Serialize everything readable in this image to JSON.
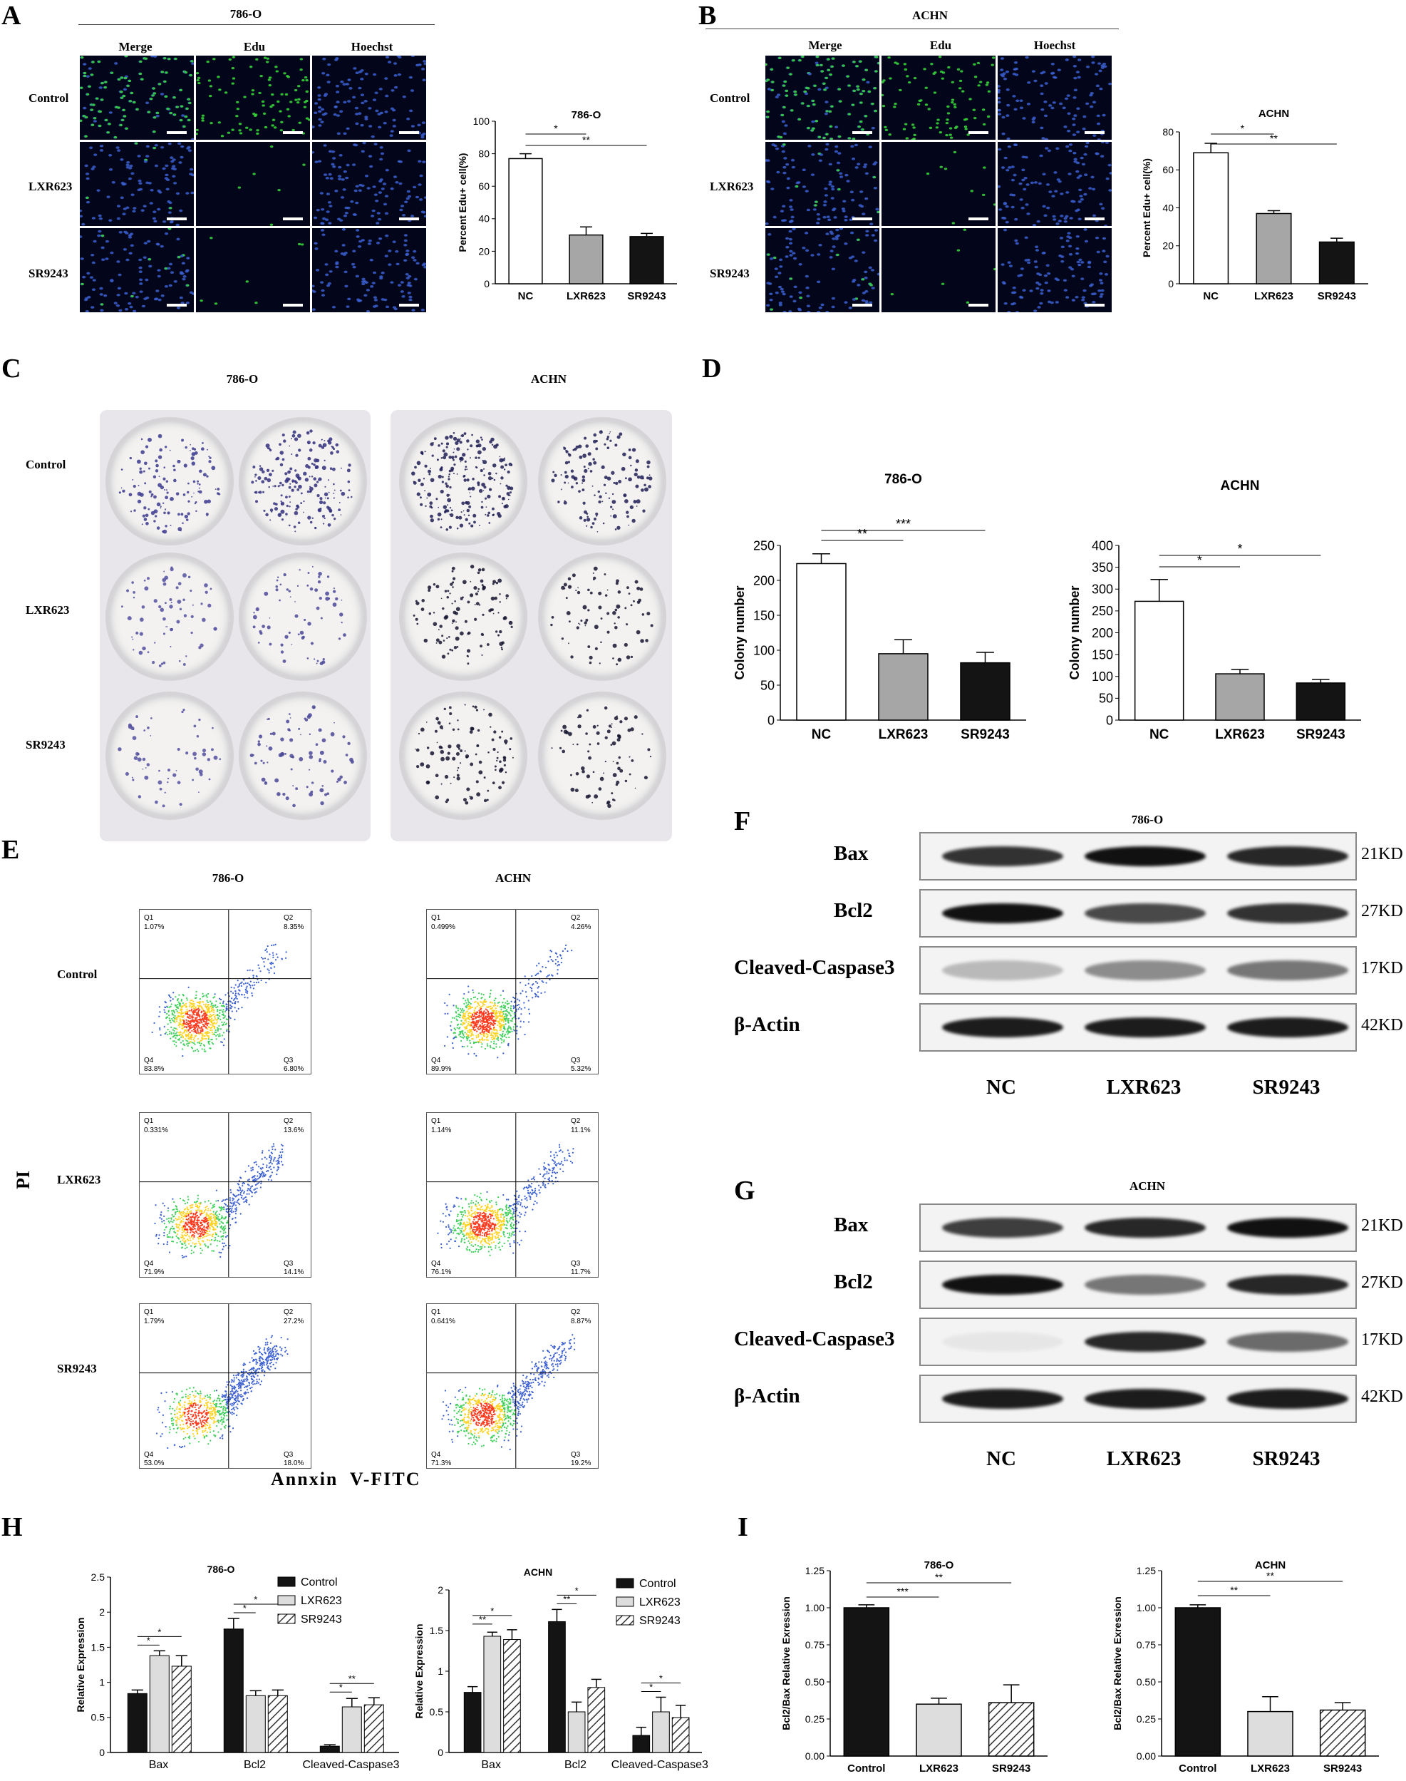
{
  "panels": {
    "A": "A",
    "B": "B",
    "C": "C",
    "D": "D",
    "E": "E",
    "F": "F",
    "G": "G",
    "H": "H",
    "I": "I"
  },
  "edu": {
    "cols": [
      "Merge",
      "Edu",
      "Hoechst"
    ],
    "rows": [
      "Control",
      "LXR623",
      "SR9243"
    ],
    "cell_a": "786-O",
    "cell_b": "ACHN"
  },
  "colony": {
    "cells": [
      "786-O",
      "ACHN"
    ],
    "rows": [
      "Control",
      "LXR623",
      "SR9243"
    ]
  },
  "facs": {
    "cells": [
      "786-O",
      "ACHN"
    ],
    "rows": [
      "Control",
      "LXR623",
      "SR9243"
    ],
    "ylabel": "PI",
    "xlabel": "Annxin  V-FITC",
    "quadrant_names": [
      "Q1",
      "Q2",
      "Q3",
      "Q4"
    ],
    "plots": [
      {
        "cell": "786-O",
        "row": "Control",
        "q1": "1.07%",
        "q2": "8.35%",
        "q3": "6.80%",
        "q4": "83.8%"
      },
      {
        "cell": "ACHN",
        "row": "Control",
        "q1": "0.499%",
        "q2": "4.26%",
        "q3": "5.32%",
        "q4": "89.9%"
      },
      {
        "cell": "786-O",
        "row": "LXR623",
        "q1": "0.331%",
        "q2": "13.6%",
        "q3": "14.1%",
        "q4": "71.9%"
      },
      {
        "cell": "ACHN",
        "row": "LXR623",
        "q1": "1.14%",
        "q2": "11.1%",
        "q3": "11.7%",
        "q4": "76.1%"
      },
      {
        "cell": "786-O",
        "row": "SR9243",
        "q1": "1.79%",
        "q2": "27.2%",
        "q3": "18.0%",
        "q4": "53.0%"
      },
      {
        "cell": "ACHN",
        "row": "SR9243",
        "q1": "0.641%",
        "q2": "8.87%",
        "q3": "19.2%",
        "q4": "71.3%"
      }
    ]
  },
  "blots": {
    "proteins": [
      "Bax",
      "Bcl2",
      "Cleaved-Caspase3",
      "β-Actin"
    ],
    "sizes": [
      "21KD",
      "27KD",
      "17KD",
      "42KD"
    ],
    "lanes": [
      "NC",
      "LXR623",
      "SR9243"
    ],
    "cell_f": "786-O",
    "cell_g": "ACHN",
    "intensity_f": [
      [
        0.85,
        1.0,
        0.9
      ],
      [
        1.0,
        0.75,
        0.85
      ],
      [
        0.25,
        0.45,
        0.55
      ],
      [
        0.95,
        0.95,
        0.95
      ]
    ],
    "intensity_g": [
      [
        0.8,
        0.9,
        1.0
      ],
      [
        1.0,
        0.55,
        0.9
      ],
      [
        0.05,
        0.9,
        0.6
      ],
      [
        0.95,
        0.95,
        0.95
      ]
    ]
  },
  "chart_data": [
    {
      "id": "A",
      "type": "bar",
      "title": "786-O",
      "categories": [
        "NC",
        "LXR623",
        "SR9243"
      ],
      "values": [
        77,
        30,
        29
      ],
      "errors": [
        3,
        5,
        2
      ],
      "ylabel": "Percent Edu+ cell(%)",
      "ylim": [
        0,
        100
      ],
      "yticks": [
        0,
        20,
        40,
        60,
        80,
        100
      ],
      "colors": [
        "#ffffff",
        "#a6a6a6",
        "#141414"
      ],
      "sig": [
        {
          "label": "*",
          "from": 0,
          "to": 1
        },
        {
          "label": "**",
          "from": 0,
          "to": 2
        }
      ]
    },
    {
      "id": "B",
      "type": "bar",
      "title": "ACHN",
      "categories": [
        "NC",
        "LXR623",
        "SR9243"
      ],
      "values": [
        69,
        37,
        22
      ],
      "errors": [
        5,
        1.5,
        2
      ],
      "ylabel": "Percent Edu+ cell(%)",
      "ylim": [
        0,
        80
      ],
      "yticks": [
        0,
        20,
        40,
        60,
        80
      ],
      "colors": [
        "#ffffff",
        "#a6a6a6",
        "#141414"
      ],
      "sig": [
        {
          "label": "*",
          "from": 0,
          "to": 1
        },
        {
          "label": "**",
          "from": 0,
          "to": 2
        }
      ]
    },
    {
      "id": "D1",
      "type": "bar",
      "title": "786-O",
      "categories": [
        "NC",
        "LXR623",
        "SR9243"
      ],
      "values": [
        224,
        95,
        82
      ],
      "errors": [
        14,
        20,
        15
      ],
      "ylabel": "Colony number",
      "ylim": [
        0,
        250
      ],
      "yticks": [
        0,
        50,
        100,
        150,
        200,
        250
      ],
      "colors": [
        "#ffffff",
        "#a6a6a6",
        "#141414"
      ],
      "sig": [
        {
          "label": "**",
          "from": 0,
          "to": 1
        },
        {
          "label": "***",
          "from": 0,
          "to": 2
        }
      ]
    },
    {
      "id": "D2",
      "type": "bar",
      "title": "ACHN",
      "categories": [
        "NC",
        "LXR623",
        "SR9243"
      ],
      "values": [
        272,
        106,
        85
      ],
      "errors": [
        50,
        10,
        8
      ],
      "ylabel": "Colony number",
      "ylim": [
        0,
        400
      ],
      "yticks": [
        0,
        50,
        100,
        150,
        200,
        250,
        300,
        350,
        400
      ],
      "colors": [
        "#ffffff",
        "#a6a6a6",
        "#141414"
      ],
      "sig": [
        {
          "label": "*",
          "from": 0,
          "to": 1
        },
        {
          "label": "*",
          "from": 0,
          "to": 2
        }
      ]
    },
    {
      "id": "H1",
      "type": "bar",
      "title": "786-O",
      "categories": [
        "Bax",
        "Bcl2",
        "Cleaved-Caspase3"
      ],
      "series": [
        {
          "name": "Control",
          "values": [
            0.84,
            1.76,
            0.09
          ],
          "errors": [
            0.05,
            0.15,
            0.02
          ]
        },
        {
          "name": "LXR623",
          "values": [
            1.38,
            0.81,
            0.65
          ],
          "errors": [
            0.07,
            0.07,
            0.12
          ]
        },
        {
          "name": "SR9243",
          "values": [
            1.23,
            0.81,
            0.68
          ],
          "errors": [
            0.15,
            0.08,
            0.1
          ]
        }
      ],
      "ylabel": "Relative Expression",
      "ylim": [
        0,
        2.5
      ],
      "yticks": [
        0,
        0.5,
        1.0,
        1.5,
        2.0,
        2.5
      ],
      "colors": [
        "#141414",
        "#dddddd",
        "hatch"
      ],
      "sig": [
        {
          "label": "*",
          "cat": 0,
          "from": 0,
          "to": 1
        },
        {
          "label": "*",
          "cat": 0,
          "from": 0,
          "to": 2
        },
        {
          "label": "*",
          "cat": 1,
          "from": 0,
          "to": 1
        },
        {
          "label": "*",
          "cat": 1,
          "from": 0,
          "to": 2
        },
        {
          "label": "*",
          "cat": 2,
          "from": 0,
          "to": 1
        },
        {
          "label": "**",
          "cat": 2,
          "from": 0,
          "to": 2
        }
      ]
    },
    {
      "id": "H2",
      "type": "bar",
      "title": "ACHN",
      "categories": [
        "Bax",
        "Bcl2",
        "Cleaved-Caspase3"
      ],
      "series": [
        {
          "name": "Control",
          "values": [
            0.74,
            1.61,
            0.21
          ],
          "errors": [
            0.07,
            0.15,
            0.1
          ]
        },
        {
          "name": "LXR623",
          "values": [
            1.43,
            0.5,
            0.5
          ],
          "errors": [
            0.05,
            0.12,
            0.18
          ]
        },
        {
          "name": "SR9243",
          "values": [
            1.39,
            0.8,
            0.43
          ],
          "errors": [
            0.12,
            0.1,
            0.15
          ]
        }
      ],
      "ylabel": "Relative Expression",
      "ylim": [
        0,
        2.0
      ],
      "yticks": [
        0,
        0.5,
        1.0,
        1.5,
        2.0
      ],
      "colors": [
        "#141414",
        "#dddddd",
        "hatch"
      ],
      "sig": [
        {
          "label": "**",
          "cat": 0,
          "from": 0,
          "to": 1
        },
        {
          "label": "*",
          "cat": 0,
          "from": 0,
          "to": 2
        },
        {
          "label": "**",
          "cat": 1,
          "from": 0,
          "to": 1
        },
        {
          "label": "*",
          "cat": 1,
          "from": 0,
          "to": 2
        },
        {
          "label": "*",
          "cat": 2,
          "from": 0,
          "to": 1
        },
        {
          "label": "*",
          "cat": 2,
          "from": 0,
          "to": 2
        }
      ]
    },
    {
      "id": "I1",
      "type": "bar",
      "title": "786-O",
      "categories": [
        "Control",
        "LXR623",
        "SR9243"
      ],
      "values": [
        1.0,
        0.35,
        0.36
      ],
      "errors": [
        0.02,
        0.04,
        0.12
      ],
      "ylabel": "Bcl2/Bax Relative Exression",
      "ylim": [
        0,
        1.25
      ],
      "yticks": [
        0,
        0.25,
        0.5,
        0.75,
        1.0,
        1.25
      ],
      "ytickfmt": 2,
      "colors": [
        "#141414",
        "#dddddd",
        "hatch"
      ],
      "sig": [
        {
          "label": "***",
          "from": 0,
          "to": 1
        },
        {
          "label": "**",
          "from": 0,
          "to": 2
        }
      ]
    },
    {
      "id": "I2",
      "type": "bar",
      "title": "ACHN",
      "categories": [
        "Control",
        "LXR623",
        "SR9243"
      ],
      "values": [
        1.0,
        0.3,
        0.31
      ],
      "errors": [
        0.02,
        0.1,
        0.05
      ],
      "ylabel": "Bcl2/Bax Relative Exression",
      "ylim": [
        0,
        1.25
      ],
      "yticks": [
        0,
        0.25,
        0.5,
        0.75,
        1.0,
        1.25
      ],
      "ytickfmt": 2,
      "colors": [
        "#141414",
        "#dddddd",
        "hatch"
      ],
      "sig": [
        {
          "label": "**",
          "from": 0,
          "to": 1
        },
        {
          "label": "**",
          "from": 0,
          "to": 2
        }
      ]
    }
  ]
}
